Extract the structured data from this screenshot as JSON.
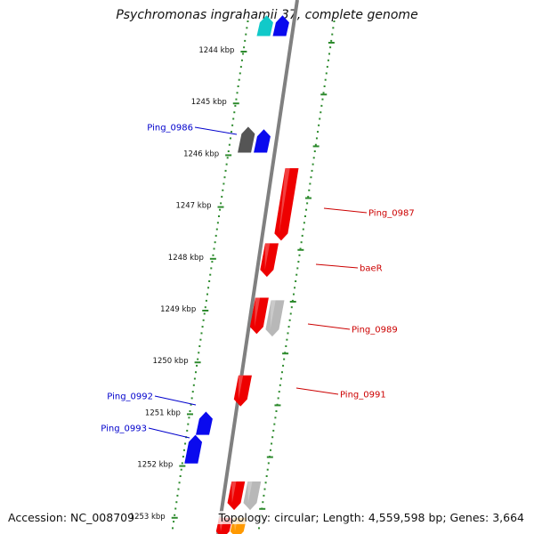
{
  "header": {
    "title": "Psychromonas ingrahamii 37, complete genome"
  },
  "footer": {
    "accession": "Accession: NC_008709",
    "summary": "Topology: circular; Length: 4,559,598 bp; Genes: 3,664"
  },
  "colors": {
    "backbone": "#808080",
    "ticks": "#2e8b2e",
    "forward_label": "#0000cc",
    "reverse_label": "#cc0000",
    "gene_red": "#ee0000",
    "gene_blue": "#0a0aee",
    "gene_grey": "#b8b8b8",
    "gene_dark": "#555555",
    "gene_cyan": "#11c9c9",
    "gene_orange": "#ff9900"
  },
  "ticks": [
    {
      "label": "1244 kbp",
      "kbp": 1244
    },
    {
      "label": "1245 kbp",
      "kbp": 1245
    },
    {
      "label": "1246 kbp",
      "kbp": 1246
    },
    {
      "label": "1247 kbp",
      "kbp": 1247
    },
    {
      "label": "1248 kbp",
      "kbp": 1248
    },
    {
      "label": "1249 kbp",
      "kbp": 1249
    },
    {
      "label": "1250 kbp",
      "kbp": 1250
    },
    {
      "label": "1251 kbp",
      "kbp": 1251
    },
    {
      "label": "1252 kbp",
      "kbp": 1252
    },
    {
      "label": "1253 kbp",
      "kbp": 1253
    }
  ],
  "genes": [
    {
      "id": "g-cyan-top",
      "strand": "fwd",
      "start": 1243.3,
      "end": 1243.7,
      "color": "gene_cyan",
      "label": ""
    },
    {
      "id": "g-blue-top",
      "strand": "fwd",
      "start": 1243.3,
      "end": 1243.7,
      "color": "gene_blue",
      "label": ""
    },
    {
      "id": "g-dark-0985",
      "strand": "fwd",
      "start": 1245.45,
      "end": 1245.95,
      "color": "gene_dark",
      "label": ""
    },
    {
      "id": "g-0986",
      "strand": "fwd",
      "start": 1245.5,
      "end": 1245.95,
      "color": "gene_blue",
      "label": "Ping_0986"
    },
    {
      "id": "g-0987",
      "strand": "rev",
      "start": 1246.25,
      "end": 1247.65,
      "color": "gene_red",
      "label": "Ping_0987"
    },
    {
      "id": "g-baeR",
      "strand": "rev",
      "start": 1247.7,
      "end": 1248.35,
      "color": "gene_red",
      "label": "baeR"
    },
    {
      "id": "g-0988",
      "strand": "rev",
      "start": 1248.75,
      "end": 1249.45,
      "color": "gene_red",
      "label": ""
    },
    {
      "id": "g-0989",
      "strand": "rev",
      "start": 1248.8,
      "end": 1249.5,
      "color": "gene_grey",
      "label": "Ping_0989"
    },
    {
      "id": "g-0991",
      "strand": "rev",
      "start": 1250.25,
      "end": 1250.85,
      "color": "gene_red",
      "label": "Ping_0991"
    },
    {
      "id": "g-0992",
      "strand": "fwd",
      "start": 1250.95,
      "end": 1251.4,
      "color": "gene_blue",
      "label": "Ping_0992"
    },
    {
      "id": "g-0993",
      "strand": "fwd",
      "start": 1251.4,
      "end": 1251.95,
      "color": "gene_blue",
      "label": "Ping_0993"
    },
    {
      "id": "g-bottom-red",
      "strand": "rev",
      "start": 1252.3,
      "end": 1252.85,
      "color": "gene_red",
      "label": ""
    },
    {
      "id": "g-bottom-grey",
      "strand": "rev",
      "start": 1252.3,
      "end": 1252.85,
      "color": "gene_grey",
      "label": ""
    },
    {
      "id": "g-bottom-red2",
      "strand": "rev",
      "start": 1253.0,
      "end": 1253.4,
      "color": "gene_red",
      "label": ""
    },
    {
      "id": "g-bottom-orange",
      "strand": "rev",
      "start": 1253.0,
      "end": 1253.4,
      "color": "gene_orange",
      "label": ""
    }
  ]
}
